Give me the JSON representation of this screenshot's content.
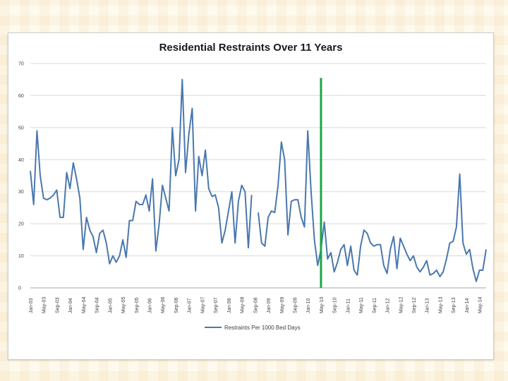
{
  "colors": {
    "series": "#4a78ad",
    "marker": "#1aa647",
    "grid": "#d9d9d9",
    "background": "#fffaee"
  },
  "chart_data": {
    "type": "line",
    "title": "Residential Restraints Over 11 Years",
    "ylim": [
      0,
      70
    ],
    "yticks": [
      0,
      10,
      20,
      30,
      40,
      50,
      60,
      70
    ],
    "grid": "horizontal",
    "legend_position": "bottom",
    "series": [
      {
        "name": "Restraints Per 1000 Bed Days",
        "start_month": "Jan-03",
        "values": [
          36.5,
          26,
          49,
          35,
          28,
          27.5,
          28,
          29,
          30.5,
          22,
          22,
          36,
          31,
          39,
          34,
          28,
          12,
          22,
          18,
          16,
          11,
          17,
          18,
          14,
          7.5,
          10,
          8,
          10,
          15,
          9.5,
          21,
          21,
          27,
          26,
          26,
          29,
          24,
          34,
          11.5,
          20,
          32,
          28,
          24,
          50,
          35,
          40,
          65,
          36,
          48,
          56,
          24,
          41,
          35,
          43,
          31,
          28.5,
          29,
          25,
          14,
          18,
          24,
          30,
          14,
          27,
          32,
          30,
          12.5,
          29,
          null,
          23.5,
          14,
          13,
          22,
          24,
          23.5,
          32,
          45.5,
          40,
          16.5,
          27,
          27.5,
          27.5,
          22,
          19,
          49,
          30,
          15,
          7,
          12,
          20.5,
          9,
          11,
          5,
          8,
          12,
          13.5,
          7,
          13,
          5.5,
          4,
          13,
          18,
          17,
          14,
          13,
          13.5,
          13.5,
          7,
          4.5,
          12,
          16,
          6,
          15.5,
          13,
          10.5,
          8.5,
          10,
          6.5,
          5,
          6.5,
          8.5,
          4,
          4.5,
          5.5,
          3.5,
          5,
          9,
          14,
          14.5,
          19,
          35.5,
          14,
          10.5,
          12,
          6,
          2,
          5.5,
          5.5,
          12
        ]
      }
    ],
    "x_labels": [
      "Jan-03",
      "May-03",
      "Sep-03",
      "Jan-04",
      "May-04",
      "Sep-04",
      "Jan-05",
      "May-05",
      "Sep-05",
      "Jan-06",
      "May-06",
      "Sep-06",
      "Jan-07",
      "May-07",
      "Sep-07",
      "Jan-08",
      "May-08",
      "Sep-08",
      "Jan-09",
      "May-09",
      "Sep-09",
      "Jan-10",
      "May-10",
      "Sep-10",
      "Jan-11",
      "May-11",
      "Sep-11",
      "Jan-12",
      "May-12",
      "Sep-12",
      "Jan-13",
      "May-13",
      "Sep-13",
      "Jan-14",
      "May-14"
    ],
    "annotations": [
      {
        "type": "vertical-line",
        "at": "May-10",
        "color": "#1aa647"
      }
    ]
  }
}
